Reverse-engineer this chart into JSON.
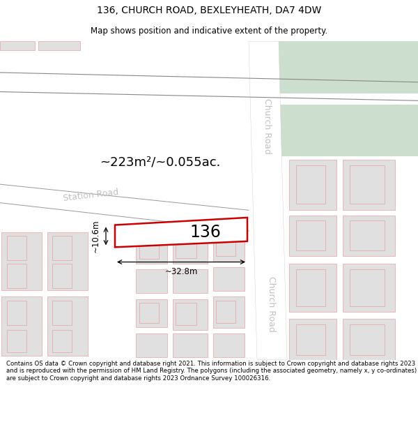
{
  "title": "136, CHURCH ROAD, BEXLEYHEATH, DA7 4DW",
  "subtitle": "Map shows position and indicative extent of the property.",
  "area_text": "~223m²/~0.055ac.",
  "number_label": "136",
  "width_label": "~32.8m",
  "height_label": "~10.6m",
  "station_road_label": "Station Road",
  "church_road_label": "Church Road",
  "copyright_text": "Contains OS data © Crown copyright and database right 2021. This information is subject to Crown copyright and database rights 2023 and is reproduced with the permission of HM Land Registry. The polygons (including the associated geometry, namely x, y co-ordinates) are subject to Crown copyright and database rights 2023 Ordnance Survey 100026316.",
  "bg_color": "#ffffff",
  "map_bg": "#f2f2f2",
  "building_fill": "#e0e0e0",
  "building_stroke": "#e8a0a0",
  "highlighted_fill": "#ffffff",
  "highlighted_stroke": "#cc0000",
  "green_fill": "#ccdece",
  "road_color": "#ffffff",
  "road_label_color": "#c0c0c0",
  "title_fontsize": 10,
  "subtitle_fontsize": 8.5,
  "area_fontsize": 13,
  "number_fontsize": 17,
  "dim_fontsize": 8.5,
  "road_label_fontsize": 9,
  "copyright_fontsize": 6.2
}
